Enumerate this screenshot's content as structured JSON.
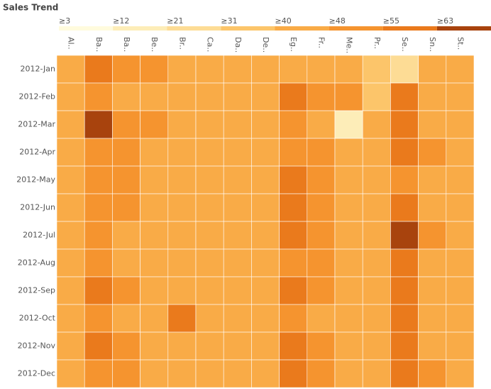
{
  "chart_data": {
    "type": "heatmap",
    "title": "Sales Trend",
    "categories": [
      "Al..",
      "Ba..",
      "Ba..",
      "Be..",
      "Br..",
      "Ca..",
      "Da..",
      "De..",
      "Eg..",
      "Fr..",
      "Me..",
      "Pr..",
      "Se..",
      "Sn..",
      "St.."
    ],
    "rows": [
      "2012-Jan",
      "2012-Feb",
      "2012-Mar",
      "2012-Apr",
      "2012-May",
      "2012-Jun",
      "2012-Jul",
      "2012-Aug",
      "2012-Sep",
      "2012-Oct",
      "2012-Nov",
      "2012-Dec"
    ],
    "values": [
      [
        42,
        56,
        50,
        48,
        47,
        42,
        46,
        45,
        44,
        47,
        46,
        36,
        22,
        46,
        42
      ],
      [
        44,
        50,
        47,
        46,
        45,
        40,
        41,
        44,
        60,
        52,
        50,
        37,
        62,
        45,
        44
      ],
      [
        42,
        64,
        50,
        48,
        46,
        42,
        40,
        44,
        50,
        46,
        18,
        40,
        55,
        44,
        45
      ],
      [
        44,
        50,
        48,
        45,
        44,
        42,
        45,
        44,
        50,
        48,
        44,
        42,
        55,
        48,
        45
      ],
      [
        42,
        52,
        48,
        44,
        45,
        43,
        46,
        46,
        55,
        48,
        46,
        40,
        52,
        47,
        46
      ],
      [
        45,
        52,
        48,
        46,
        45,
        44,
        46,
        44,
        58,
        50,
        44,
        40,
        55,
        46,
        44
      ],
      [
        42,
        48,
        47,
        45,
        46,
        43,
        46,
        44,
        55,
        50,
        45,
        42,
        70,
        48,
        46
      ],
      [
        44,
        48,
        46,
        45,
        44,
        42,
        44,
        45,
        52,
        48,
        44,
        40,
        55,
        47,
        44
      ],
      [
        43,
        56,
        48,
        46,
        45,
        42,
        44,
        44,
        60,
        50,
        45,
        40,
        56,
        47,
        45
      ],
      [
        43,
        48,
        46,
        46,
        57,
        42,
        44,
        45,
        52,
        44,
        46,
        42,
        58,
        47,
        44
      ],
      [
        42,
        56,
        48,
        46,
        45,
        42,
        46,
        45,
        55,
        50,
        46,
        40,
        58,
        47,
        44
      ],
      [
        42,
        54,
        48,
        46,
        45,
        42,
        46,
        44,
        55,
        48,
        45,
        40,
        60,
        48,
        46
      ]
    ],
    "legend_ticks": [
      {
        "value": 3,
        "label": "≥3"
      },
      {
        "value": 12,
        "label": "≥12"
      },
      {
        "value": 21,
        "label": "≥21"
      },
      {
        "value": 31,
        "label": "≥31"
      },
      {
        "value": 40,
        "label": "≥40"
      },
      {
        "value": 48,
        "label": "≥48"
      },
      {
        "value": 55,
        "label": "≥55"
      },
      {
        "value": 63,
        "label": "≥63"
      }
    ],
    "colors": [
      "#fffbdd",
      "#fdedb8",
      "#fddc95",
      "#fcc56a",
      "#f9ab47",
      "#f5942f",
      "#ea7a1c",
      "#a8430d"
    ]
  }
}
